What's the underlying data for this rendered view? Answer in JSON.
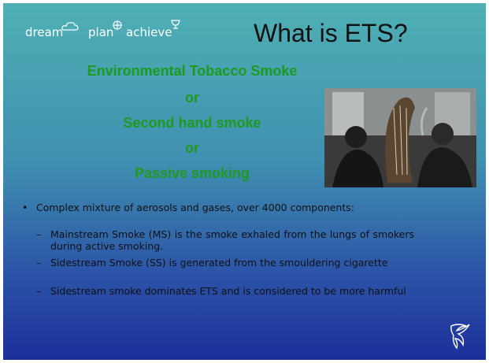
{
  "header": {
    "logo": [
      "dream",
      "plan",
      "achieve"
    ],
    "title": "What is ETS?"
  },
  "highlight": [
    "Environmental Tobacco Smoke",
    "or",
    "Second hand smoke",
    "or",
    "Passive smoking"
  ],
  "bullets": [
    {
      "text": "Complex mixture of aerosols and gases, over 4000 components:",
      "subitems": [
        "Mainstream Smoke (MS) is the smoke exhaled from the lungs of smokers during active smoking.",
        "Sidestream Smoke (SS) is generated from the smouldering cigarette",
        "Sidestream smoke dominates ETS and is considered to be more harmful"
      ]
    }
  ]
}
